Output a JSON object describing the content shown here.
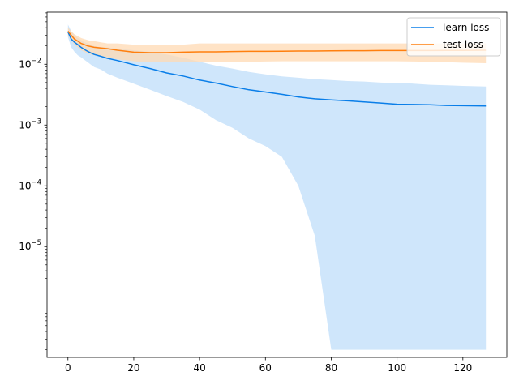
{
  "chart_data": {
    "type": "line",
    "title": "",
    "xlabel": "",
    "ylabel": "",
    "yscale": "log",
    "xlim": [
      -6.35,
      133.35
    ],
    "ylim": [
      1.5e-07,
      0.072
    ],
    "grid": false,
    "legend_position": "top-right",
    "x_ticks": [
      0,
      20,
      40,
      60,
      80,
      100,
      120
    ],
    "x_tick_labels": [
      "0",
      "20",
      "40",
      "60",
      "80",
      "100",
      "120"
    ],
    "y_ticks": [
      1e-05,
      0.0001,
      0.001,
      0.01
    ],
    "y_tick_labels": [
      {
        "base": "10",
        "exp": "−5"
      },
      {
        "base": "10",
        "exp": "−4"
      },
      {
        "base": "10",
        "exp": "−3"
      },
      {
        "base": "10",
        "exp": "−2"
      }
    ],
    "series": [
      {
        "name": "learn loss",
        "color": "#0a7ee8",
        "band_color": "#cfe6fb",
        "x": [
          0,
          1,
          2,
          3,
          4,
          5,
          6,
          7,
          8,
          10,
          12,
          15,
          20,
          25,
          30,
          35,
          40,
          45,
          50,
          55,
          60,
          65,
          70,
          75,
          80,
          85,
          90,
          95,
          100,
          105,
          110,
          115,
          120,
          127
        ],
        "y": [
          0.034,
          0.026,
          0.023,
          0.021,
          0.019,
          0.0175,
          0.0163,
          0.0153,
          0.0145,
          0.0135,
          0.0125,
          0.0115,
          0.0098,
          0.0085,
          0.0072,
          0.0064,
          0.0055,
          0.0049,
          0.0043,
          0.0038,
          0.0035,
          0.0032,
          0.0029,
          0.0027,
          0.0026,
          0.0025,
          0.0024,
          0.0023,
          0.0022,
          0.00218,
          0.00215,
          0.0021,
          0.00208,
          0.00206
        ],
        "upper": [
          0.045,
          0.035,
          0.03,
          0.027,
          0.025,
          0.023,
          0.022,
          0.021,
          0.02,
          0.019,
          0.019,
          0.018,
          0.017,
          0.016,
          0.0145,
          0.0128,
          0.011,
          0.0095,
          0.0085,
          0.0075,
          0.0068,
          0.0063,
          0.006,
          0.0057,
          0.0055,
          0.0053,
          0.0052,
          0.005,
          0.0049,
          0.0048,
          0.0046,
          0.0045,
          0.0044,
          0.0043
        ],
        "lower": [
          0.028,
          0.019,
          0.016,
          0.014,
          0.013,
          0.0118,
          0.0108,
          0.0098,
          0.009,
          0.0082,
          0.007,
          0.006,
          0.0048,
          0.0038,
          0.003,
          0.0024,
          0.0018,
          0.0012,
          0.0009,
          0.0006,
          0.00045,
          0.0003,
          0.0001,
          1.5e-05,
          2e-07,
          2e-07,
          2e-07,
          2e-07,
          2e-07,
          2e-07,
          2e-07,
          2e-07,
          2e-07,
          2e-07
        ]
      },
      {
        "name": "test loss",
        "color": "#ff7f0e",
        "band_color": "#ffd9b3",
        "x": [
          0,
          1,
          2,
          3,
          4,
          5,
          6,
          7,
          8,
          10,
          12,
          15,
          20,
          25,
          30,
          35,
          40,
          45,
          50,
          55,
          60,
          65,
          70,
          75,
          80,
          85,
          90,
          95,
          100,
          105,
          110,
          115,
          120,
          127
        ],
        "y": [
          0.035,
          0.03,
          0.026,
          0.024,
          0.022,
          0.021,
          0.02,
          0.0195,
          0.019,
          0.0185,
          0.018,
          0.017,
          0.0158,
          0.0155,
          0.0155,
          0.0158,
          0.016,
          0.016,
          0.0162,
          0.0163,
          0.0163,
          0.0164,
          0.0165,
          0.0165,
          0.0166,
          0.0167,
          0.0167,
          0.0168,
          0.0168,
          0.0168,
          0.0168,
          0.0169,
          0.0169,
          0.017
        ],
        "upper": [
          0.04,
          0.035,
          0.031,
          0.029,
          0.027,
          0.026,
          0.025,
          0.024,
          0.024,
          0.023,
          0.022,
          0.022,
          0.021,
          0.021,
          0.021,
          0.021,
          0.022,
          0.022,
          0.022,
          0.022,
          0.022,
          0.022,
          0.022,
          0.022,
          0.022,
          0.022,
          0.022,
          0.022,
          0.022,
          0.022,
          0.022,
          0.022,
          0.022,
          0.022
        ],
        "lower": [
          0.03,
          0.025,
          0.021,
          0.019,
          0.017,
          0.016,
          0.015,
          0.0145,
          0.014,
          0.0135,
          0.013,
          0.012,
          0.0112,
          0.0108,
          0.0108,
          0.011,
          0.011,
          0.011,
          0.011,
          0.011,
          0.0111,
          0.0112,
          0.0112,
          0.0112,
          0.0112,
          0.0112,
          0.0112,
          0.0112,
          0.0112,
          0.0111,
          0.011,
          0.0108,
          0.0106,
          0.0104
        ]
      }
    ]
  }
}
